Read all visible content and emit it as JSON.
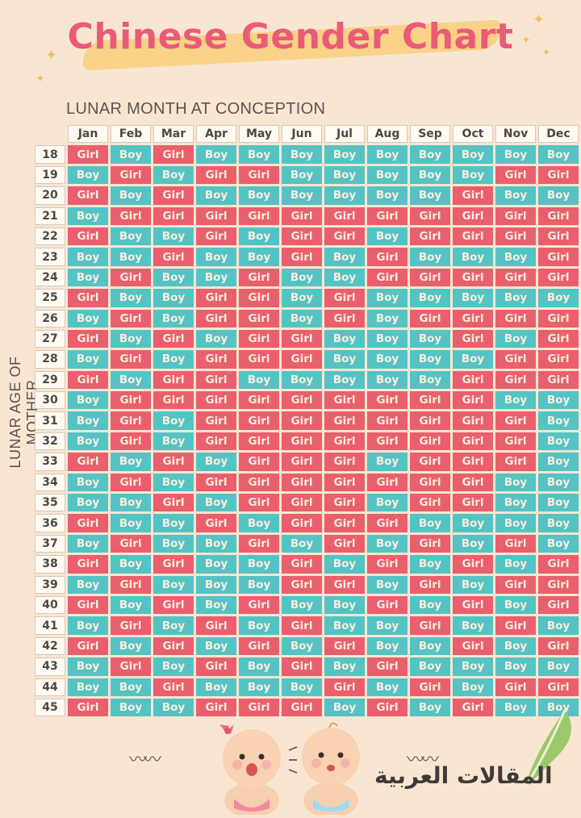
{
  "title": "Chinese Gender Chart",
  "x_axis_label": "LUNAR MONTH AT CONCEPTION",
  "y_axis_label": "LUNAR AGE OF MOTHER",
  "months": [
    "Jan",
    "Feb",
    "Mar",
    "Apr",
    "May",
    "Jun",
    "Jul",
    "Aug",
    "Sep",
    "Oct",
    "Nov",
    "Dec"
  ],
  "rows": [
    {
      "age": "18",
      "cells": [
        "Girl",
        "Boy",
        "Girl",
        "Boy",
        "Boy",
        "Boy",
        "Boy",
        "Boy",
        "Boy",
        "Boy",
        "Boy",
        "Boy"
      ]
    },
    {
      "age": "19",
      "cells": [
        "Boy",
        "Girl",
        "Boy",
        "Girl",
        "Girl",
        "Boy",
        "Boy",
        "Boy",
        "Boy",
        "Boy",
        "Girl",
        "Girl"
      ]
    },
    {
      "age": "20",
      "cells": [
        "Girl",
        "Boy",
        "Girl",
        "Boy",
        "Boy",
        "Boy",
        "Boy",
        "Boy",
        "Boy",
        "Girl",
        "Boy",
        "Boy"
      ]
    },
    {
      "age": "21",
      "cells": [
        "Boy",
        "Girl",
        "Girl",
        "Girl",
        "Girl",
        "Girl",
        "Girl",
        "Girl",
        "Girl",
        "Girl",
        "Girl",
        "Girl"
      ]
    },
    {
      "age": "22",
      "cells": [
        "Girl",
        "Boy",
        "Boy",
        "Girl",
        "Boy",
        "Girl",
        "Girl",
        "Boy",
        "Girl",
        "Girl",
        "Girl",
        "Girl"
      ]
    },
    {
      "age": "23",
      "cells": [
        "Boy",
        "Boy",
        "Girl",
        "Boy",
        "Boy",
        "Girl",
        "Boy",
        "Girl",
        "Boy",
        "Boy",
        "Boy",
        "Girl"
      ]
    },
    {
      "age": "24",
      "cells": [
        "Boy",
        "Girl",
        "Boy",
        "Boy",
        "Girl",
        "Boy",
        "Boy",
        "Girl",
        "Girl",
        "Girl",
        "Girl",
        "Girl"
      ]
    },
    {
      "age": "25",
      "cells": [
        "Girl",
        "Boy",
        "Boy",
        "Girl",
        "Girl",
        "Boy",
        "Girl",
        "Boy",
        "Boy",
        "Boy",
        "Boy",
        "Boy"
      ]
    },
    {
      "age": "26",
      "cells": [
        "Boy",
        "Girl",
        "Boy",
        "Girl",
        "Girl",
        "Boy",
        "Girl",
        "Boy",
        "Girl",
        "Girl",
        "Girl",
        "Girl"
      ]
    },
    {
      "age": "27",
      "cells": [
        "Girl",
        "Boy",
        "Girl",
        "Boy",
        "Girl",
        "Girl",
        "Boy",
        "Boy",
        "Boy",
        "Girl",
        "Boy",
        "Girl"
      ]
    },
    {
      "age": "28",
      "cells": [
        "Boy",
        "Girl",
        "Boy",
        "Girl",
        "Girl",
        "Girl",
        "Boy",
        "Boy",
        "Boy",
        "Boy",
        "Girl",
        "Girl"
      ]
    },
    {
      "age": "29",
      "cells": [
        "Girl",
        "Boy",
        "Girl",
        "Girl",
        "Boy",
        "Boy",
        "Boy",
        "Boy",
        "Boy",
        "Girl",
        "Girl",
        "Girl"
      ]
    },
    {
      "age": "30",
      "cells": [
        "Boy",
        "Girl",
        "Girl",
        "Girl",
        "Girl",
        "Girl",
        "Girl",
        "Girl",
        "Girl",
        "Girl",
        "Boy",
        "Boy"
      ]
    },
    {
      "age": "31",
      "cells": [
        "Boy",
        "Girl",
        "Boy",
        "Girl",
        "Girl",
        "Girl",
        "Girl",
        "Girl",
        "Girl",
        "Girl",
        "Girl",
        "Boy"
      ]
    },
    {
      "age": "32",
      "cells": [
        "Boy",
        "Girl",
        "Boy",
        "Girl",
        "Girl",
        "Girl",
        "Girl",
        "Girl",
        "Girl",
        "Girl",
        "Girl",
        "Boy"
      ]
    },
    {
      "age": "33",
      "cells": [
        "Girl",
        "Boy",
        "Girl",
        "Boy",
        "Girl",
        "Girl",
        "Girl",
        "Boy",
        "Girl",
        "Girl",
        "Girl",
        "Boy"
      ]
    },
    {
      "age": "34",
      "cells": [
        "Boy",
        "Girl",
        "Boy",
        "Girl",
        "Girl",
        "Girl",
        "Girl",
        "Girl",
        "Girl",
        "Girl",
        "Boy",
        "Boy"
      ]
    },
    {
      "age": "35",
      "cells": [
        "Boy",
        "Boy",
        "Girl",
        "Boy",
        "Girl",
        "Girl",
        "Girl",
        "Boy",
        "Girl",
        "Girl",
        "Boy",
        "Boy"
      ]
    },
    {
      "age": "36",
      "cells": [
        "Girl",
        "Boy",
        "Boy",
        "Girl",
        "Boy",
        "Girl",
        "Girl",
        "Girl",
        "Boy",
        "Boy",
        "Boy",
        "Boy"
      ]
    },
    {
      "age": "37",
      "cells": [
        "Boy",
        "Girl",
        "Boy",
        "Boy",
        "Girl",
        "Boy",
        "Girl",
        "Boy",
        "Girl",
        "Boy",
        "Girl",
        "Boy"
      ]
    },
    {
      "age": "38",
      "cells": [
        "Girl",
        "Boy",
        "Girl",
        "Boy",
        "Boy",
        "Girl",
        "Boy",
        "Girl",
        "Boy",
        "Girl",
        "Boy",
        "Girl"
      ]
    },
    {
      "age": "39",
      "cells": [
        "Boy",
        "Girl",
        "Boy",
        "Boy",
        "Boy",
        "Girl",
        "Girl",
        "Boy",
        "Girl",
        "Boy",
        "Girl",
        "Girl"
      ]
    },
    {
      "age": "40",
      "cells": [
        "Girl",
        "Boy",
        "Girl",
        "Boy",
        "Girl",
        "Boy",
        "Boy",
        "Girl",
        "Boy",
        "Girl",
        "Boy",
        "Girl"
      ]
    },
    {
      "age": "41",
      "cells": [
        "Boy",
        "Girl",
        "Boy",
        "Girl",
        "Boy",
        "Girl",
        "Boy",
        "Boy",
        "Girl",
        "Boy",
        "Girl",
        "Boy"
      ]
    },
    {
      "age": "42",
      "cells": [
        "Girl",
        "Boy",
        "Girl",
        "Boy",
        "Girl",
        "Boy",
        "Girl",
        "Boy",
        "Boy",
        "Girl",
        "Boy",
        "Girl"
      ]
    },
    {
      "age": "43",
      "cells": [
        "Boy",
        "Girl",
        "Boy",
        "Girl",
        "Boy",
        "Girl",
        "Boy",
        "Girl",
        "Boy",
        "Boy",
        "Boy",
        "Boy"
      ]
    },
    {
      "age": "44",
      "cells": [
        "Boy",
        "Boy",
        "Girl",
        "Boy",
        "Boy",
        "Boy",
        "Girl",
        "Boy",
        "Girl",
        "Boy",
        "Girl",
        "Girl"
      ]
    },
    {
      "age": "45",
      "cells": [
        "Girl",
        "Boy",
        "Boy",
        "Girl",
        "Girl",
        "Girl",
        "Boy",
        "Girl",
        "Boy",
        "Girl",
        "Boy",
        "Boy"
      ]
    }
  ],
  "colors": {
    "girl": "#ea5f6e",
    "boy": "#54c3c3",
    "title": "#ea5b78",
    "background": "#f9e6d2"
  },
  "watermark": "المقالات العربية"
}
